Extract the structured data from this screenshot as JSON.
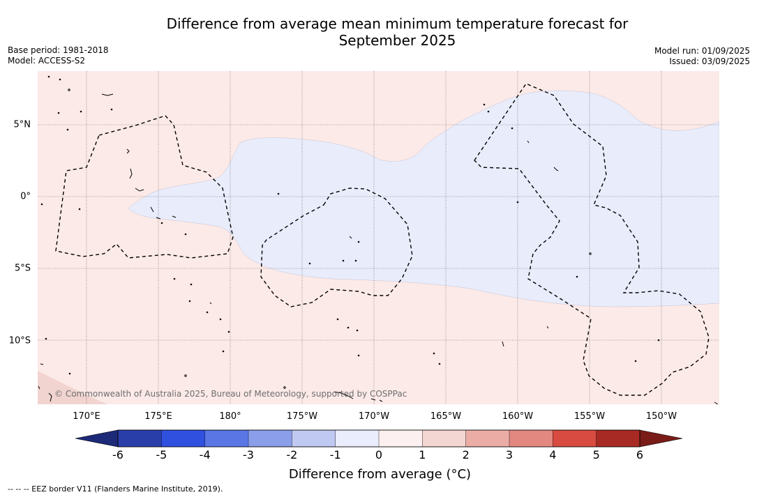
{
  "title_line1": "Difference from average mean minimum temperature forecast for",
  "title_line2": "September 2025",
  "base_period": "Base period: 1981-2018",
  "model": "Model: ACCESS-S2",
  "model_run": "Model run: 01/09/2025",
  "issued": "Issued: 03/09/2025",
  "copyright": "© Commonwealth of Australia 2025, Bureau of Meteorology, supported by COSPPac",
  "lon_labels": [
    "170°E",
    "175°E",
    "180°",
    "175°W",
    "170°W",
    "165°W",
    "160°W",
    "155°W",
    "150°W"
  ],
  "lat_labels": [
    "5°N",
    "0°",
    "5°S",
    "10°S"
  ],
  "colorbar_ticks": [
    "-6",
    "-5",
    "-4",
    "-3",
    "-2",
    "-1",
    "0",
    "1",
    "2",
    "3",
    "4",
    "5",
    "6"
  ],
  "colorbar_colors": [
    "#2a3eaa",
    "#3050e0",
    "#5a76e4",
    "#8b9eea",
    "#c0c9f2",
    "#eaedfb",
    "#fdf0f0",
    "#f3d5d2",
    "#ebaca6",
    "#e38880",
    "#d84b40",
    "#a82a24"
  ],
  "colorbar_under": "#1d2a78",
  "colorbar_over": "#7a1c18",
  "colorbar_title": "Difference from average (°C)",
  "footer": "--  --  -- EEZ border V11 (Flanders Marine Institute, 2019).",
  "map_colors": {
    "warm": "#fceae8",
    "cool": "#e9ecfb",
    "warmer": "#f1d4d0"
  }
}
